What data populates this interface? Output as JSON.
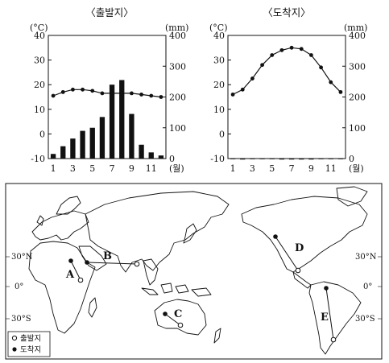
{
  "chart_data": [
    {
      "type": "bar+line",
      "title": "〈출발지〉",
      "temp_unit": "(°C)",
      "precip_unit": "(mm)",
      "x_unit": "(월)",
      "months": [
        1,
        2,
        3,
        4,
        5,
        6,
        7,
        8,
        9,
        10,
        11,
        12
      ],
      "x_tick_labels": [
        "1",
        "3",
        "5",
        "7",
        "9",
        "11"
      ],
      "temp_ylim": [
        -10,
        40
      ],
      "temp_ticks": [
        "-10",
        "0",
        "10",
        "20",
        "30",
        "40"
      ],
      "precip_ylim": [
        0,
        400
      ],
      "precip_ticks": [
        "0",
        "100",
        "200",
        "300",
        "400"
      ],
      "temperature": [
        15.5,
        17,
        18,
        18,
        17.5,
        16.5,
        16.5,
        16.5,
        16.5,
        16,
        15.5,
        15
      ],
      "precipitation": [
        15,
        40,
        65,
        90,
        100,
        135,
        240,
        255,
        145,
        45,
        20,
        10
      ]
    },
    {
      "type": "bar+line",
      "title": "〈도착지〉",
      "temp_unit": "(°C)",
      "precip_unit": "(mm)",
      "x_unit": "(월)",
      "months": [
        1,
        2,
        3,
        4,
        5,
        6,
        7,
        8,
        9,
        10,
        11,
        12
      ],
      "x_tick_labels": [
        "1",
        "3",
        "5",
        "7",
        "9",
        "11"
      ],
      "temp_ylim": [
        -10,
        40
      ],
      "temp_ticks": [
        "-10",
        "0",
        "10",
        "20",
        "30",
        "40"
      ],
      "precip_ylim": [
        0,
        400
      ],
      "precip_ticks": [
        "0",
        "100",
        "200",
        "300",
        "400"
      ],
      "temperature": [
        16,
        18,
        22.5,
        28,
        32,
        34,
        35,
        34.5,
        32,
        27,
        21,
        17
      ],
      "precipitation": [
        1,
        0,
        1,
        1,
        1,
        0,
        0,
        0,
        0,
        1,
        1,
        1
      ]
    }
  ],
  "map": {
    "lat_labels": {
      "n30": "30°N",
      "eq": "0°",
      "s30": "30°S"
    },
    "routes": [
      "A",
      "B",
      "C",
      "D",
      "E"
    ],
    "legend": {
      "origin": "출발지",
      "destination": "도착지"
    }
  }
}
